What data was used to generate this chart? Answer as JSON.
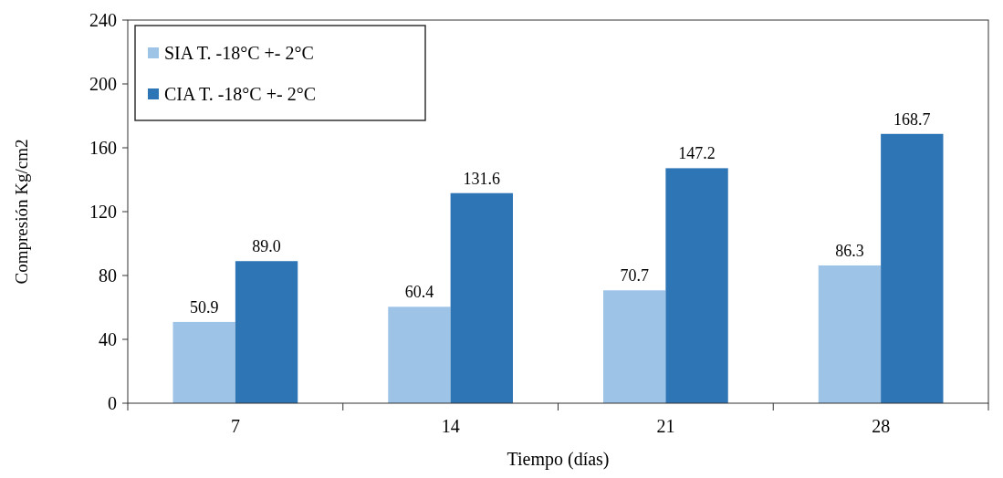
{
  "chart_data": {
    "type": "bar",
    "xlabel": "Tiempo (días)",
    "ylabel": "Compresión Kg/cm2",
    "categories": [
      "7",
      "14",
      "21",
      "28"
    ],
    "series": [
      {
        "name": "SIA T. -18°C +- 2°C",
        "color": "#9dc3e6",
        "values": [
          50.9,
          60.4,
          70.7,
          86.3
        ],
        "value_labels": [
          "50.9",
          "60.4",
          "70.7",
          "86.3"
        ]
      },
      {
        "name": "CIA T. -18°C +- 2°C",
        "color": "#2e75b6",
        "values": [
          89.0,
          131.6,
          147.2,
          168.7
        ],
        "value_labels": [
          "89.0",
          "131.6",
          "147.2",
          "168.7"
        ]
      }
    ],
    "ylim": [
      0,
      240
    ],
    "yticks": [
      0,
      40,
      80,
      120,
      160,
      200,
      240
    ],
    "grid": false,
    "legend": "top left"
  }
}
